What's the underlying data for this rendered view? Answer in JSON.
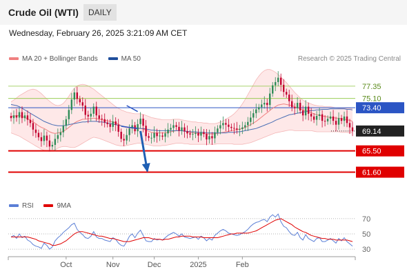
{
  "header": {
    "title": "Crude Oil (WTI)",
    "period": "DAILY",
    "datetime": "Wednesday, February 26, 2025 3:21:09 AM CET"
  },
  "legend": {
    "main": [
      {
        "label": "MA 20 + Bollinger Bands",
        "color": "#f08080"
      },
      {
        "label": "MA 50",
        "color": "#1f4e9c"
      }
    ],
    "rsi": [
      {
        "label": "RSI",
        "color": "#5b7fd6"
      },
      {
        "label": "9MA",
        "color": "#e00000"
      }
    ]
  },
  "copyright": "Research © 2025 Trading Central",
  "colors": {
    "up": "#2e8b57",
    "down": "#c2002f",
    "levels": "#e00000",
    "current": "#222222",
    "arrow": "#1f5fb3",
    "resistance": "#2b55c4",
    "grid_green": "#8cc63f"
  },
  "chart_data": [
    {
      "type": "candlestick",
      "x_tick_labels": [
        "Oct",
        "Nov",
        "Dec",
        "2025",
        "Feb"
      ],
      "ylim": [
        57.5,
        81.0
      ],
      "current_price": 69.14,
      "levels": [
        {
          "label": "77.35",
          "value": 77.35,
          "style": "grid-green"
        },
        {
          "label": "75.10",
          "value": 75.1,
          "style": "grid-green"
        },
        {
          "label": "73.40",
          "value": 73.4,
          "style": "blue"
        },
        {
          "label": "69.14",
          "value": 69.14,
          "style": "current"
        },
        {
          "label": "65.50",
          "value": 65.5,
          "style": "red"
        },
        {
          "label": "61.60",
          "value": 61.6,
          "style": "red"
        }
      ],
      "closes": [
        71.5,
        72.0,
        71.6,
        72.6,
        71.5,
        72.0,
        71.2,
        70.6,
        69.4,
        68.8,
        68.0,
        67.3,
        68.3,
        67.4,
        66.3,
        66.6,
        67.7,
        68.4,
        68.9,
        70.1,
        71.3,
        73.0,
        74.9,
        76.2,
        75.0,
        74.4,
        73.8,
        72.1,
        71.8,
        72.3,
        73.6,
        72.0,
        71.4,
        71.3,
        70.7,
        70.4,
        69.9,
        70.9,
        70.3,
        69.0,
        67.7,
        67.4,
        68.4,
        69.6,
        70.2,
        69.1,
        70.4,
        71.4,
        70.1,
        68.2,
        67.9,
        67.9,
        68.8,
        68.2,
        68.3,
        68.1,
        68.7,
        69.4,
        69.7,
        70.2,
        69.9,
        69.2,
        69.8,
        69.1,
        68.7,
        68.5,
        68.6,
        68.8,
        68.3,
        68.9,
        68.6,
        67.6,
        68.2,
        67.8,
        68.9,
        69.6,
        70.2,
        70.6,
        70.3,
        69.9,
        69.7,
        69.6,
        69.4,
        69.5,
        69.8,
        70.2,
        70.8,
        71.6,
        72.4,
        73.1,
        73.5,
        74.0,
        74.3,
        73.9,
        76.0,
        77.5,
        78.1,
        78.9,
        77.6,
        76.3,
        75.8,
        74.6,
        73.5,
        73.3,
        74.3,
        72.9,
        72.0,
        73.6,
        72.3,
        71.8,
        71.2,
        71.9,
        72.2,
        71.0,
        70.9,
        71.4,
        71.8,
        71.0,
        70.3,
        71.5,
        71.0,
        71.8,
        70.6,
        69.8,
        69.1
      ],
      "ma20": [
        71.8,
        71.9,
        71.9,
        72.0,
        71.8,
        71.6,
        71.4,
        71.1,
        70.8,
        70.5,
        70.1,
        69.8,
        69.6,
        69.3,
        69.0,
        68.8,
        68.7,
        68.8,
        68.9,
        69.1,
        69.4,
        69.8,
        70.2,
        70.6,
        70.9,
        71.1,
        71.3,
        71.3,
        71.4,
        71.4,
        71.5,
        71.4,
        71.3,
        71.2,
        71.1,
        71.0,
        70.9,
        70.8,
        70.6,
        70.4,
        70.1,
        69.9,
        69.8,
        69.7,
        69.7,
        69.6,
        69.6,
        69.6,
        69.5,
        69.3,
        69.1,
        68.9,
        68.8,
        68.8,
        68.8,
        68.8,
        68.8,
        68.9,
        69.0,
        69.1,
        69.2,
        69.2,
        69.2,
        69.1,
        69.0,
        68.9,
        68.8,
        68.8,
        68.7,
        68.7,
        68.7,
        68.6,
        68.6,
        68.6,
        68.6,
        68.7,
        68.8,
        68.9,
        69.0,
        69.1,
        69.2,
        69.3,
        69.4,
        69.5,
        69.6,
        69.8,
        70.0,
        70.3,
        70.6,
        70.9,
        71.3,
        71.7,
        72.1,
        72.5,
        72.9,
        73.3,
        73.6,
        73.9,
        74.0,
        74.1,
        74.0,
        73.9,
        73.8,
        73.6,
        73.4,
        73.2,
        73.0,
        72.9,
        72.7,
        72.5,
        72.3,
        72.1,
        72.0,
        71.9,
        71.8,
        71.7,
        71.6,
        71.6,
        71.5,
        71.5,
        71.4,
        71.3,
        71.2,
        71.1,
        70.9
      ],
      "upper_band": [
        74.5,
        74.8,
        75.2,
        75.6,
        75.9,
        76.2,
        76.5,
        76.7,
        76.8,
        76.7,
        76.4,
        76.0,
        75.5,
        75.0,
        74.6,
        74.2,
        73.9,
        73.8,
        73.9,
        74.2,
        74.8,
        75.5,
        76.3,
        77.0,
        77.4,
        77.6,
        77.7,
        77.6,
        77.4,
        77.1,
        76.8,
        76.4,
        76.0,
        75.6,
        75.2,
        74.8,
        74.4,
        74.0,
        73.6,
        73.3,
        73.0,
        72.8,
        72.6,
        72.5,
        72.4,
        72.3,
        72.3,
        72.3,
        72.2,
        72.0,
        71.8,
        71.6,
        71.5,
        71.4,
        71.3,
        71.2,
        71.2,
        71.2,
        71.2,
        71.3,
        71.3,
        71.3,
        71.2,
        71.1,
        71.0,
        70.9,
        70.8,
        70.8,
        70.7,
        70.7,
        70.6,
        70.6,
        70.5,
        70.5,
        70.5,
        70.6,
        70.8,
        71.0,
        71.3,
        71.6,
        71.9,
        72.3,
        72.8,
        73.4,
        74.1,
        74.9,
        75.8,
        76.7,
        77.6,
        78.5,
        79.2,
        79.8,
        80.2,
        80.4,
        80.4,
        80.2,
        79.9,
        79.5,
        79.0,
        78.5,
        78.0,
        77.4,
        76.8,
        76.2,
        75.7,
        75.2,
        74.8,
        74.5,
        74.3,
        74.1,
        73.9,
        73.8,
        73.7,
        73.7,
        73.6,
        73.6,
        73.6,
        73.5,
        73.4,
        73.3,
        73.3,
        73.3,
        73.3,
        73.3,
        73.2
      ],
      "lower_band": [
        68.8,
        68.6,
        68.4,
        68.2,
        67.9,
        67.6,
        67.3,
        67.0,
        66.7,
        66.4,
        66.1,
        65.8,
        65.6,
        65.5,
        65.4,
        65.5,
        65.7,
        66.0,
        66.2,
        66.3,
        66.3,
        66.2,
        66.1,
        66.1,
        66.3,
        66.6,
        66.9,
        67.2,
        67.5,
        67.8,
        68.0,
        67.9,
        67.8,
        67.6,
        67.4,
        67.2,
        67.0,
        66.8,
        66.6,
        66.5,
        66.4,
        66.4,
        66.5,
        66.6,
        66.7,
        66.8,
        66.9,
        66.9,
        66.8,
        66.7,
        66.6,
        66.5,
        66.4,
        66.4,
        66.4,
        66.5,
        66.5,
        66.6,
        66.7,
        66.8,
        66.9,
        66.9,
        66.9,
        66.8,
        66.8,
        66.7,
        66.7,
        66.7,
        66.7,
        66.7,
        66.7,
        66.7,
        66.7,
        66.7,
        66.7,
        66.8,
        66.8,
        66.8,
        66.8,
        66.8,
        66.8,
        66.7,
        66.7,
        66.7,
        66.7,
        66.8,
        66.9,
        67.0,
        67.2,
        67.4,
        67.6,
        67.8,
        68.0,
        68.2,
        68.4,
        68.6,
        68.8,
        68.9,
        69.0,
        69.1,
        69.2,
        69.3,
        69.3,
        69.2,
        69.2,
        69.2,
        69.2,
        69.2,
        69.2,
        69.2,
        69.1,
        69.0,
        69.0,
        69.0,
        69.0,
        69.0,
        69.0,
        69.0,
        69.0,
        69.0,
        68.9,
        68.9,
        68.9,
        68.8,
        68.8
      ],
      "ma50": [
        74.0,
        73.9,
        73.8,
        73.6,
        73.3,
        73.0,
        72.7,
        72.4,
        72.1,
        71.8,
        71.5,
        71.2,
        70.9,
        70.7,
        70.5,
        70.3,
        70.2,
        70.1,
        70.1,
        70.1,
        70.2,
        70.3,
        70.4,
        70.5,
        70.6,
        70.7,
        70.8,
        70.8,
        70.9,
        70.9,
        70.9,
        70.9,
        70.8,
        70.8,
        70.7,
        70.6,
        70.5,
        70.4,
        70.3,
        70.2,
        70.1,
        70.0,
        69.9,
        69.8,
        69.8,
        69.7,
        69.7,
        69.6,
        69.6,
        69.5,
        69.4,
        69.3,
        69.3,
        69.2,
        69.2,
        69.2,
        69.2,
        69.2,
        69.2,
        69.2,
        69.2,
        69.2,
        69.2,
        69.1,
        69.1,
        69.0,
        69.0,
        69.0,
        68.9,
        68.9,
        68.9,
        68.8,
        68.8,
        68.8,
        68.8,
        68.8,
        68.8,
        68.8,
        68.8,
        68.9,
        68.9,
        68.9,
        69.0,
        69.0,
        69.1,
        69.2,
        69.3,
        69.4,
        69.5,
        69.6,
        69.8,
        70.0,
        70.2,
        70.4,
        70.6,
        70.8,
        71.1,
        71.3,
        71.5,
        71.7,
        71.9,
        72.1,
        72.2,
        72.3,
        72.4,
        72.5,
        72.6,
        72.7,
        72.8,
        72.9,
        72.9,
        73.0,
        73.0,
        73.1,
        73.1,
        73.1,
        73.2,
        73.2,
        73.2,
        73.2,
        73.2,
        73.2,
        73.1,
        73.1,
        73.0
      ],
      "trendlines": [
        {
          "from": [
            42.0,
            73.8
          ],
          "to": [
            46.0,
            72.7
          ]
        },
        {
          "from": [
            40.0,
            70.0
          ],
          "to": [
            46.0,
            69.6
          ]
        }
      ],
      "forecast_arrow": {
        "from": [
          47.0,
          69.14
        ],
        "to": [
          49.5,
          61.8
        ]
      }
    },
    {
      "type": "line",
      "name": "RSI panel",
      "y_ticks": [
        "70",
        "50",
        "30"
      ],
      "ylim": [
        22,
        78
      ],
      "series": [
        {
          "name": "RSI",
          "values": [
            46,
            48,
            44,
            50,
            45,
            47,
            42,
            40,
            36,
            34,
            33,
            31,
            38,
            35,
            30,
            33,
            41,
            45,
            48,
            52,
            55,
            58,
            62,
            64,
            56,
            52,
            49,
            45,
            44,
            47,
            53,
            46,
            44,
            44,
            42,
            41,
            40,
            45,
            43,
            38,
            35,
            34,
            40,
            47,
            50,
            45,
            51,
            55,
            48,
            41,
            40,
            40,
            44,
            42,
            43,
            42,
            45,
            48,
            50,
            52,
            50,
            47,
            50,
            46,
            45,
            44,
            45,
            46,
            43,
            47,
            45,
            41,
            44,
            42,
            48,
            51,
            54,
            56,
            54,
            51,
            50,
            49,
            48,
            49,
            51,
            53,
            56,
            60,
            63,
            65,
            66,
            68,
            69,
            66,
            72,
            75,
            72,
            76,
            66,
            60,
            58,
            53,
            49,
            48,
            52,
            45,
            42,
            49,
            44,
            42,
            40,
            44,
            45,
            40,
            40,
            42,
            44,
            41,
            38,
            44,
            41,
            45,
            40,
            37,
            34
          ]
        },
        {
          "name": "9MA",
          "values": [
            46,
            46,
            46,
            46,
            46,
            46,
            46,
            45,
            44,
            43,
            41,
            40,
            39,
            38,
            37,
            35,
            35,
            36,
            37,
            39,
            41,
            44,
            47,
            50,
            52,
            53,
            53,
            52,
            51,
            50,
            49,
            48,
            47,
            47,
            46,
            45,
            44,
            44,
            43,
            42,
            41,
            40,
            40,
            40,
            41,
            42,
            43,
            44,
            45,
            45,
            45,
            44,
            43,
            43,
            43,
            42,
            43,
            43,
            44,
            45,
            46,
            46,
            47,
            47,
            47,
            47,
            46,
            46,
            46,
            46,
            45,
            45,
            45,
            45,
            45,
            45,
            46,
            47,
            48,
            49,
            50,
            50,
            51,
            51,
            51,
            51,
            51,
            52,
            53,
            54,
            56,
            58,
            60,
            62,
            64,
            66,
            68,
            69,
            70,
            68,
            66,
            64,
            62,
            59,
            57,
            55,
            53,
            52,
            50,
            48,
            47,
            46,
            45,
            44,
            44,
            43,
            43,
            43,
            42,
            42,
            42,
            42,
            42,
            41,
            40
          ]
        }
      ]
    }
  ]
}
